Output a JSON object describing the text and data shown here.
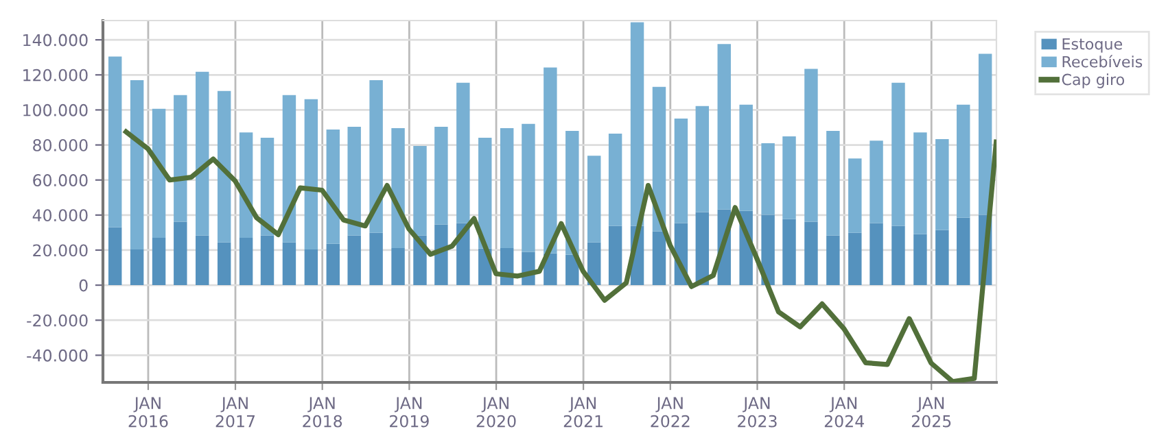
{
  "chart_data": {
    "type": "bar",
    "stacked": true,
    "grid": true,
    "legend": "top right",
    "xlim": [
      "2015-06-25",
      "2025-10-01"
    ],
    "xticks": [
      {
        "value": "2016-01-01",
        "label": "JAN\n2016"
      },
      {
        "value": "2017-01-01",
        "label": "JAN\n2017"
      },
      {
        "value": "2018-01-01",
        "label": "JAN\n2018"
      },
      {
        "value": "2019-01-01",
        "label": "JAN\n2019"
      },
      {
        "value": "2020-01-01",
        "label": "JAN\n2020"
      },
      {
        "value": "2021-01-01",
        "label": "JAN\n2021"
      },
      {
        "value": "2022-01-01",
        "label": "JAN\n2022"
      },
      {
        "value": "2023-01-01",
        "label": "JAN\n2023"
      },
      {
        "value": "2024-01-01",
        "label": "JAN\n2024"
      },
      {
        "value": "2025-01-01",
        "label": "JAN\n2025"
      }
    ],
    "ylim": [
      -55500,
      151000
    ],
    "yticks": [
      {
        "value": -40000,
        "label": "-40.000"
      },
      {
        "value": -20000,
        "label": "-20.000"
      },
      0,
      {
        "value": 20000,
        "label": "20.000"
      },
      {
        "value": 40000,
        "label": "40.000"
      },
      {
        "value": 60000,
        "label": "60.000"
      },
      {
        "value": 80000,
        "label": "80.000"
      },
      {
        "value": 100000,
        "label": "100.000"
      },
      {
        "value": 120000,
        "label": "120.000"
      },
      {
        "value": 140000,
        "label": "140.000"
      }
    ],
    "series": [
      {
        "name": "Estoque",
        "color": "#5592be",
        "x": [
          "2015-08-15",
          "2015-11-15",
          "2016-02-15",
          "2016-05-15",
          "2016-08-15",
          "2016-11-15",
          "2017-02-15",
          "2017-05-15",
          "2017-08-15",
          "2017-11-15",
          "2018-02-15",
          "2018-05-15",
          "2018-08-15",
          "2018-11-15",
          "2019-02-15",
          "2019-05-15",
          "2019-08-15",
          "2019-11-15",
          "2020-02-15",
          "2020-05-15",
          "2020-08-15",
          "2020-11-15",
          "2021-02-15",
          "2021-05-15",
          "2021-08-15",
          "2021-11-15",
          "2022-02-15",
          "2022-05-15",
          "2022-08-15",
          "2022-11-15",
          "2023-02-15",
          "2023-05-15",
          "2023-08-15",
          "2023-11-15",
          "2024-02-15",
          "2024-05-15",
          "2024-08-15",
          "2024-11-15",
          "2025-02-15",
          "2025-05-15",
          "2025-08-15"
        ],
        "values": [
          33000,
          20400,
          27000,
          36200,
          28300,
          24400,
          27000,
          28300,
          24400,
          20400,
          23600,
          28300,
          29900,
          21200,
          28300,
          34600,
          35400,
          21000,
          21200,
          18900,
          18100,
          17300,
          24400,
          33800,
          33800,
          30700,
          35400,
          41700,
          43200,
          42400,
          40100,
          37700,
          36200,
          28300,
          29900,
          35400,
          33800,
          29100,
          31400,
          38500,
          40100
        ]
      },
      {
        "name": "Recebíveis",
        "color": "#78b0d3",
        "x": [
          "2015-08-15",
          "2015-11-15",
          "2016-02-15",
          "2016-05-15",
          "2016-08-15",
          "2016-11-15",
          "2017-02-15",
          "2017-05-15",
          "2017-08-15",
          "2017-11-15",
          "2018-02-15",
          "2018-05-15",
          "2018-08-15",
          "2018-11-15",
          "2019-02-15",
          "2019-05-15",
          "2019-08-15",
          "2019-11-15",
          "2020-02-15",
          "2020-05-15",
          "2020-08-15",
          "2020-11-15",
          "2021-02-15",
          "2021-05-15",
          "2021-08-15",
          "2021-11-15",
          "2022-02-15",
          "2022-05-15",
          "2022-08-15",
          "2022-11-15",
          "2023-02-15",
          "2023-05-15",
          "2023-08-15",
          "2023-11-15",
          "2024-02-15",
          "2024-05-15",
          "2024-08-15",
          "2024-11-15",
          "2025-02-15",
          "2025-05-15",
          "2025-08-15"
        ],
        "values": [
          97500,
          96600,
          73600,
          72300,
          93500,
          86400,
          60200,
          55800,
          84100,
          85700,
          65200,
          62100,
          87100,
          68400,
          51100,
          55800,
          80100,
          63100,
          68400,
          73100,
          106100,
          70700,
          49500,
          52700,
          116200,
          82500,
          59700,
          60500,
          94400,
          60600,
          40900,
          47200,
          87200,
          59700,
          42400,
          47100,
          81700,
          58100,
          51900,
          64500,
          91900
        ]
      },
      {
        "name": "Cap giro",
        "type": "line",
        "color": "#52703a",
        "x": [
          "2015-09-30",
          "2015-12-31",
          "2016-03-31",
          "2016-06-30",
          "2016-09-30",
          "2016-12-31",
          "2017-03-31",
          "2017-06-30",
          "2017-09-30",
          "2017-12-31",
          "2018-03-31",
          "2018-06-30",
          "2018-09-30",
          "2018-12-31",
          "2019-03-31",
          "2019-06-30",
          "2019-09-30",
          "2019-12-31",
          "2020-03-31",
          "2020-06-30",
          "2020-09-30",
          "2020-12-31",
          "2021-03-31",
          "2021-06-30",
          "2021-09-30",
          "2021-12-31",
          "2022-03-31",
          "2022-06-30",
          "2022-09-30",
          "2022-12-31",
          "2023-03-31",
          "2023-06-30",
          "2023-09-30",
          "2023-12-31",
          "2024-03-31",
          "2024-06-30",
          "2024-09-30",
          "2024-12-31",
          "2025-03-31",
          "2025-06-30",
          "2025-09-30"
        ],
        "values": [
          87500,
          77800,
          60000,
          61600,
          72000,
          59500,
          38500,
          28800,
          55500,
          54200,
          37200,
          33800,
          56900,
          32000,
          17600,
          22300,
          38000,
          6500,
          5200,
          7900,
          35100,
          7900,
          -8600,
          1300,
          56900,
          22800,
          -800,
          5500,
          44300,
          15000,
          -15200,
          -23800,
          -10700,
          -24900,
          -44300,
          -45300,
          -19100,
          -44500,
          -55000,
          -53200,
          81700
        ]
      }
    ]
  }
}
